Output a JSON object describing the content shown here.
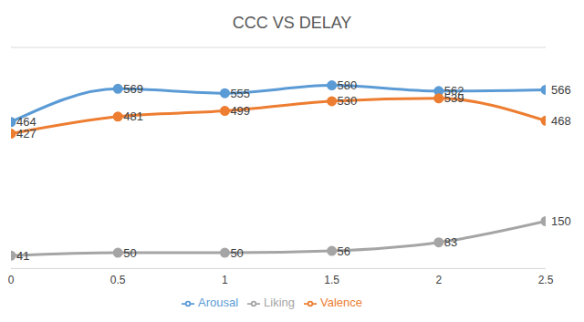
{
  "chart_data": {
    "type": "line",
    "title": "CCC  VS DELAY",
    "x": [
      0,
      0.5,
      1,
      1.5,
      2,
      2.5
    ],
    "series": [
      {
        "name": "Arousal",
        "color": "#5b9bd5",
        "values": [
          464,
          569,
          555,
          580,
          562,
          566
        ]
      },
      {
        "name": "Valence",
        "color": "#ed7d31",
        "values": [
          427,
          481,
          499,
          530,
          539,
          468
        ]
      },
      {
        "name": "Liking",
        "color": "#a5a5a5",
        "values": [
          41,
          50,
          50,
          56,
          83,
          150
        ]
      }
    ],
    "xlim": [
      0,
      2.5
    ],
    "xticks": [
      0,
      0.5,
      1,
      1.5,
      2,
      2.5
    ],
    "ylim": [
      0,
      700
    ],
    "yticks": [
      0,
      100,
      200,
      300,
      400,
      500,
      600,
      700
    ],
    "grid": true,
    "tick_labels": "x",
    "data_labels": true,
    "legend": "bottom",
    "marker": "circle",
    "line_style": "solid"
  }
}
